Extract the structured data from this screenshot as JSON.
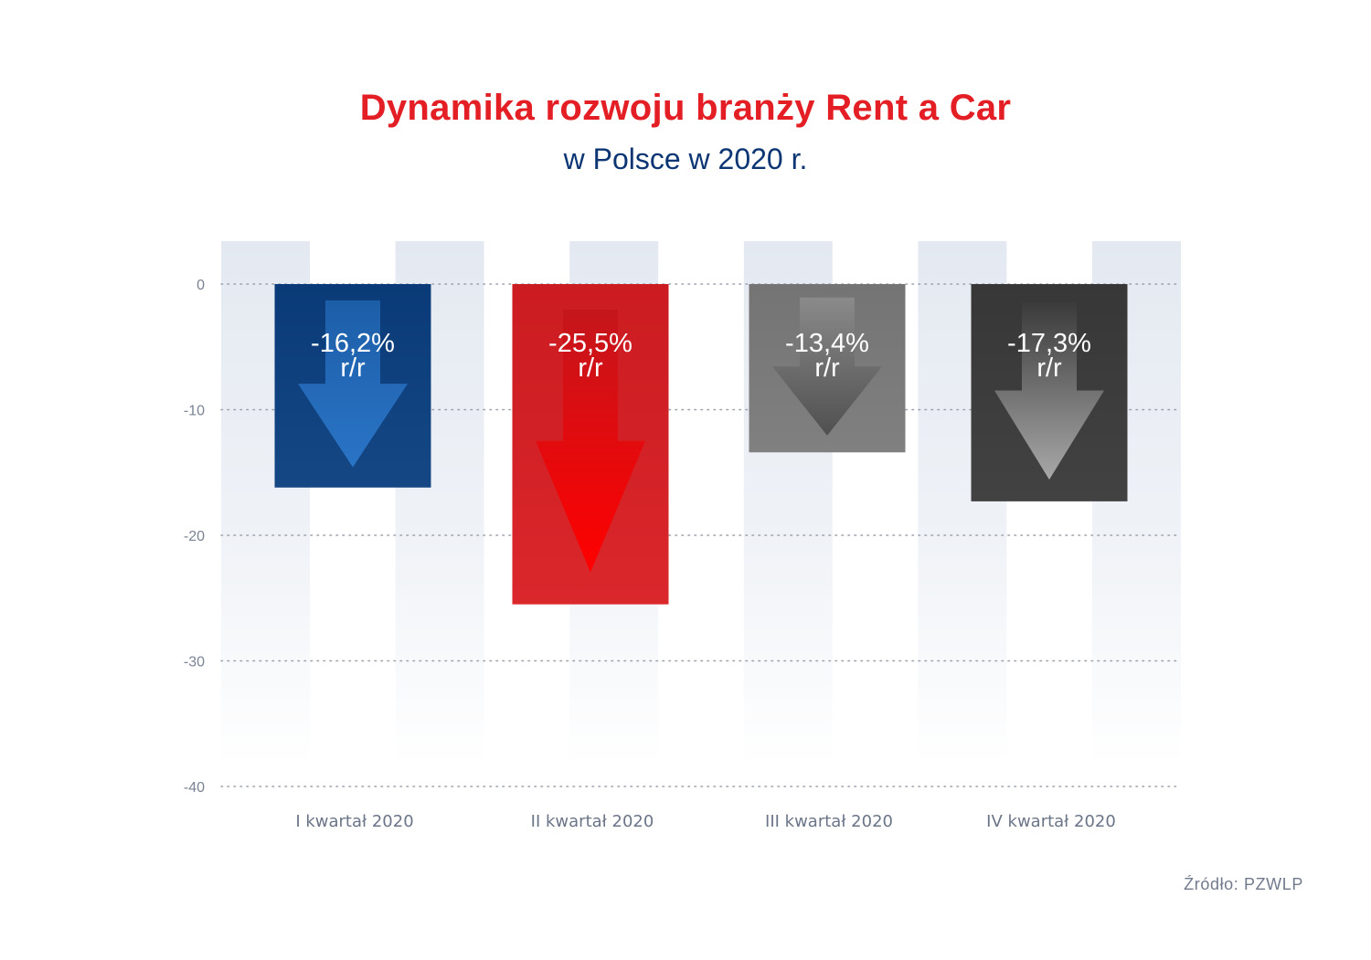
{
  "header": {
    "title": "Dynamika rozwoju branży Rent a Car",
    "subtitle": "w Polsce w 2020 r."
  },
  "source": "Źródło: PZWLP",
  "colors": {
    "title": "#e31e24",
    "subtitle": "#0b3673",
    "band": "#e4e9f1"
  },
  "chart_data": {
    "type": "bar",
    "title": "Dynamika rozwoju branży Rent a Car",
    "subtitle": "w Polsce w 2020 r.",
    "categories": [
      "I kwartał 2020",
      "II kwartał 2020",
      "III kwartał 2020",
      "IV kwartał 2020"
    ],
    "values": [
      -16.2,
      -25.5,
      -13.4,
      -17.3
    ],
    "value_labels": [
      "-16,2%",
      "-25,5%",
      "-13,4%",
      "-17,3%"
    ],
    "value_suffix": "r/r",
    "bar_colors": [
      "#0b3f80",
      "#d81e23",
      "#7b7b7b",
      "#3a3a3a"
    ],
    "arrow_icons": [
      "down-arrow-icon",
      "down-arrow-icon",
      "down-arrow-icon",
      "down-arrow-icon"
    ],
    "yticks": [
      0,
      -10,
      -20,
      -30,
      -40
    ],
    "ylim": [
      -40,
      0
    ],
    "xlabel": "",
    "ylabel": "",
    "grid": true,
    "legend": "none"
  }
}
